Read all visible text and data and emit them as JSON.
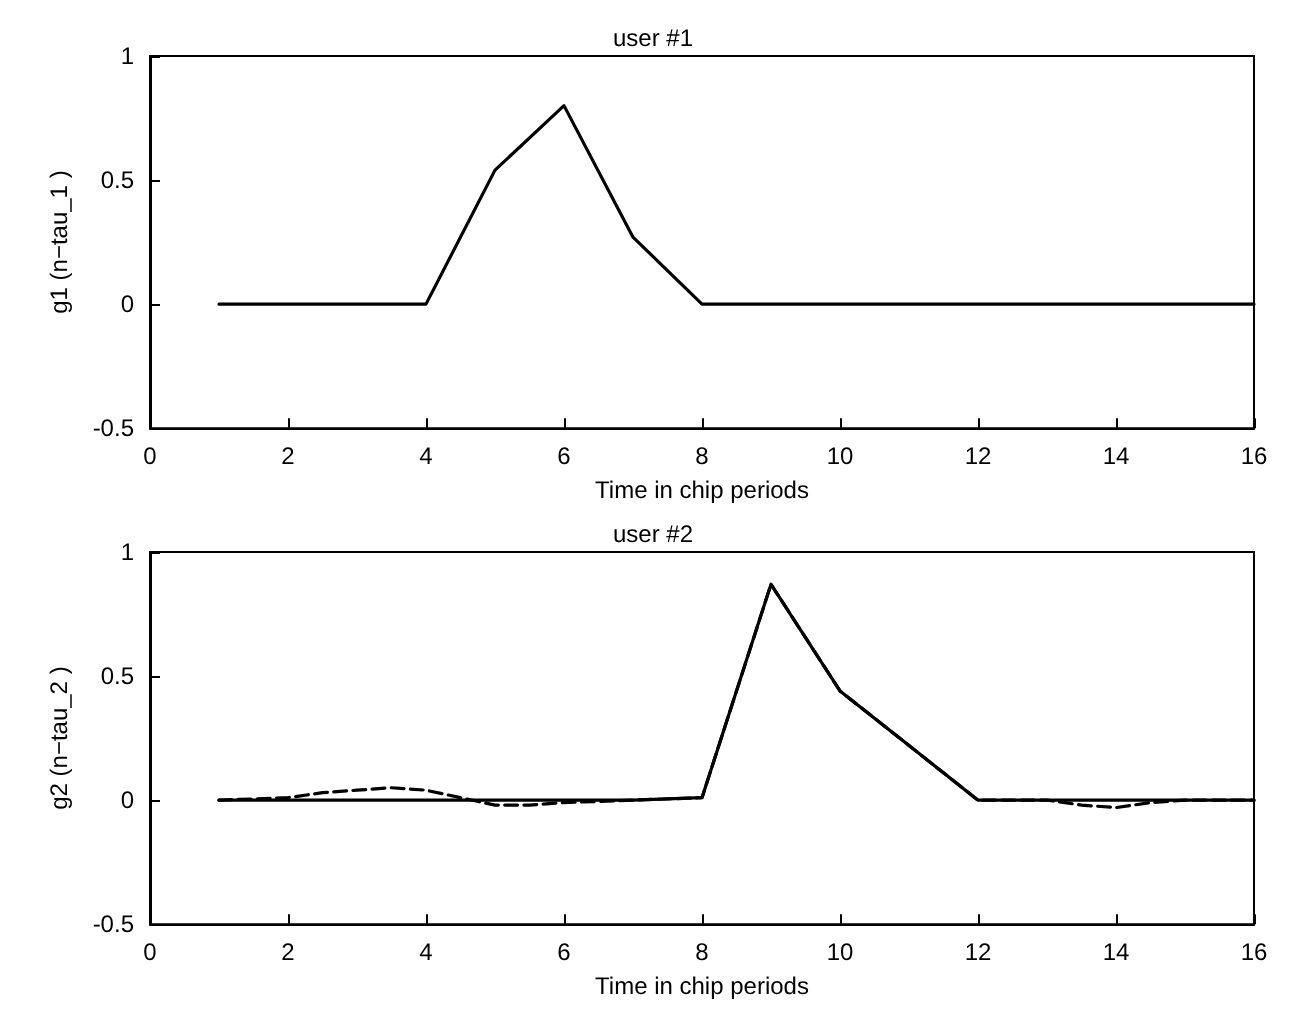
{
  "chart_data": [
    {
      "type": "line",
      "title": "user #1",
      "xlabel": "Time in chip periods",
      "ylabel": "g1 (n−tau_1 )",
      "xlim": [
        0,
        16
      ],
      "xticks": [
        0,
        2,
        4,
        6,
        8,
        10,
        12,
        14,
        16
      ],
      "ylim": [
        -0.5,
        1
      ],
      "yticks": [
        -0.5,
        0,
        0.5,
        1
      ],
      "series": [
        {
          "color": "#000000",
          "line_style": "solid",
          "x": [
            1,
            2,
            3,
            4,
            5,
            6,
            7,
            8,
            9,
            10,
            11,
            12,
            13,
            14,
            15,
            16
          ],
          "values": [
            0,
            0,
            0,
            0,
            0.54,
            0.8,
            0.27,
            0,
            0,
            0,
            0,
            0,
            0,
            0,
            0,
            0
          ]
        }
      ]
    },
    {
      "type": "line",
      "title": "user #2",
      "xlabel": "Time in chip periods",
      "ylabel": "g2 (n−tau_2 )",
      "xlim": [
        0,
        16
      ],
      "xticks": [
        0,
        2,
        4,
        6,
        8,
        10,
        12,
        14,
        16
      ],
      "ylim": [
        -0.5,
        1
      ],
      "yticks": [
        -0.5,
        0,
        0.5,
        1
      ],
      "series": [
        {
          "color": "#000000",
          "line_style": "dashed",
          "x": [
            1,
            2,
            2.5,
            3,
            3.5,
            4,
            4.5,
            5,
            5.5,
            6,
            7,
            8,
            9,
            10,
            11,
            12,
            13,
            13.5,
            14,
            14.5,
            15,
            16
          ],
          "values": [
            0,
            0.01,
            0.03,
            0.04,
            0.05,
            0.04,
            0.01,
            -0.02,
            -0.02,
            -0.01,
            0,
            0.01,
            0.87,
            0.44,
            0.22,
            0,
            0,
            -0.02,
            -0.03,
            -0.01,
            0,
            0
          ]
        },
        {
          "color": "#000000",
          "line_style": "solid",
          "x": [
            1,
            2,
            3,
            4,
            5,
            6,
            7,
            8,
            9,
            10,
            11,
            12,
            13,
            14,
            15,
            16
          ],
          "values": [
            0,
            0,
            0,
            0,
            0,
            0,
            0,
            0.01,
            0.87,
            0.44,
            0.22,
            0,
            0,
            0,
            0,
            0
          ]
        }
      ]
    }
  ]
}
